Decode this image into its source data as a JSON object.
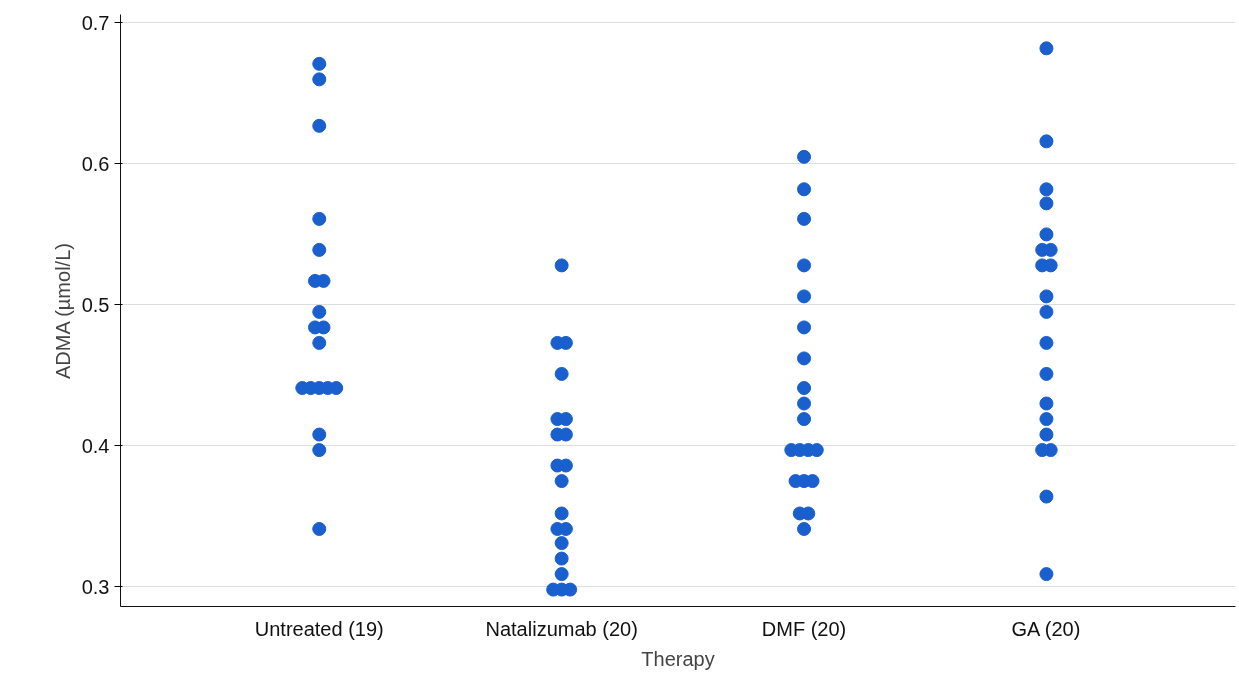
{
  "chart_data": {
    "type": "scatter",
    "xlabel": "Therapy",
    "ylabel": "ADMA (µmol/L)",
    "categories": [
      "Untreated (19)",
      "Natalizumab (20)",
      "DMF (20)",
      "GA (20)"
    ],
    "series": [
      {
        "color": "#1a5fce",
        "x": [
          "Untreated (19)",
          "Untreated (19)",
          "Untreated (19)",
          "Untreated (19)",
          "Untreated (19)",
          "Untreated (19)",
          "Untreated (19)",
          "Untreated (19)",
          "Untreated (19)",
          "Untreated (19)",
          "Untreated (19)",
          "Untreated (19)",
          "Untreated (19)",
          "Untreated (19)",
          "Untreated (19)",
          "Untreated (19)",
          "Untreated (19)",
          "Untreated (19)",
          "Untreated (19)"
        ],
        "values": [
          0.671,
          0.66,
          0.627,
          0.561,
          0.539,
          0.517,
          0.517,
          0.495,
          0.484,
          0.484,
          0.473,
          0.441,
          0.441,
          0.441,
          0.441,
          0.441,
          0.408,
          0.397,
          0.341
        ]
      },
      {
        "color": "#1a5fce",
        "x": [
          "Natalizumab (20)",
          "Natalizumab (20)",
          "Natalizumab (20)",
          "Natalizumab (20)",
          "Natalizumab (20)",
          "Natalizumab (20)",
          "Natalizumab (20)",
          "Natalizumab (20)",
          "Natalizumab (20)",
          "Natalizumab (20)",
          "Natalizumab (20)",
          "Natalizumab (20)",
          "Natalizumab (20)",
          "Natalizumab (20)",
          "Natalizumab (20)",
          "Natalizumab (20)",
          "Natalizumab (20)",
          "Natalizumab (20)",
          "Natalizumab (20)",
          "Natalizumab (20)"
        ],
        "values": [
          0.528,
          0.473,
          0.473,
          0.451,
          0.419,
          0.419,
          0.408,
          0.408,
          0.386,
          0.386,
          0.375,
          0.352,
          0.341,
          0.341,
          0.331,
          0.32,
          0.309,
          0.298,
          0.298,
          0.298
        ]
      },
      {
        "color": "#1a5fce",
        "x": [
          "DMF (20)",
          "DMF (20)",
          "DMF (20)",
          "DMF (20)",
          "DMF (20)",
          "DMF (20)",
          "DMF (20)",
          "DMF (20)",
          "DMF (20)",
          "DMF (20)",
          "DMF (20)",
          "DMF (20)",
          "DMF (20)",
          "DMF (20)",
          "DMF (20)",
          "DMF (20)",
          "DMF (20)",
          "DMF (20)",
          "DMF (20)",
          "DMF (20)"
        ],
        "values": [
          0.605,
          0.582,
          0.561,
          0.528,
          0.506,
          0.484,
          0.462,
          0.441,
          0.43,
          0.419,
          0.397,
          0.397,
          0.397,
          0.397,
          0.375,
          0.375,
          0.375,
          0.352,
          0.352,
          0.341
        ]
      },
      {
        "color": "#1a5fce",
        "x": [
          "GA (20)",
          "GA (20)",
          "GA (20)",
          "GA (20)",
          "GA (20)",
          "GA (20)",
          "GA (20)",
          "GA (20)",
          "GA (20)",
          "GA (20)",
          "GA (20)",
          "GA (20)",
          "GA (20)",
          "GA (20)",
          "GA (20)",
          "GA (20)",
          "GA (20)",
          "GA (20)",
          "GA (20)",
          "GA (20)"
        ],
        "values": [
          0.682,
          0.616,
          0.582,
          0.572,
          0.55,
          0.539,
          0.539,
          0.528,
          0.528,
          0.506,
          0.495,
          0.473,
          0.451,
          0.43,
          0.419,
          0.408,
          0.397,
          0.397,
          0.364,
          0.309
        ]
      }
    ],
    "ylim": [
      0.286,
      0.706
    ],
    "yticks": [
      0.3,
      0.4,
      0.5,
      0.6,
      0.7
    ],
    "grid": "y",
    "marker": "circle"
  }
}
